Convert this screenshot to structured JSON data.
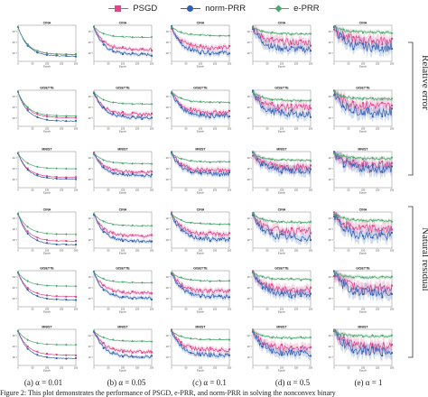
{
  "legend": [
    {
      "label": "PSGD",
      "color": "#e0448a",
      "marker": "square"
    },
    {
      "label": "norm-PRR",
      "color": "#2f5fb3",
      "marker": "circle"
    },
    {
      "label": "e-PRR",
      "color": "#4aa86b",
      "marker": "diamond"
    }
  ],
  "row_group_labels": [
    "Relative error",
    "Natural residual"
  ],
  "column_captions": [
    "(a) α = 0.01",
    "(b) α = 0.05",
    "(c) α = 0.1",
    "(d) α = 0.5",
    "(e) α = 1"
  ],
  "figure_caption": "Figure 2: This plot demonstrates the performance of PSGD, e-PRR, and norm-PRR in solving the nonconvex binary",
  "chart_data": {
    "type": "line",
    "layout_note": "6x5 grid of small line plots; rows = metric x dataset, columns = step size alpha",
    "datasets": [
      "CINA",
      "GISETTE",
      "MNIST",
      "CINA",
      "GISETTE",
      "MNIST"
    ],
    "row_metrics": [
      "Relative error",
      "Relative error",
      "Relative error",
      "Natural residual",
      "Natural residual",
      "Natural residual"
    ],
    "alphas": [
      0.01,
      0.05,
      0.1,
      0.5,
      1
    ],
    "xlabel": "Epoch",
    "x_ticks": [
      0,
      50,
      100,
      150,
      200
    ],
    "xlim": [
      0,
      200
    ],
    "y_scale": "log",
    "y_ticks": [
      "10⁻¹",
      "10⁻²",
      "10⁻³"
    ],
    "series_names": [
      "PSGD",
      "norm-PRR",
      "e-PRR"
    ],
    "subplots_note": "Approximate levels (log10) at epoch 200 per series; curves decay from ~1 at epoch 0",
    "end_levels": {
      "PSGD": [
        [
          -1.6,
          -1.3,
          -1.2,
          -0.9,
          -0.8
        ],
        [
          -1.5,
          -1.3,
          -1.2,
          -0.9,
          -0.8
        ],
        [
          -1.4,
          -1.1,
          -1.0,
          -0.8,
          -0.7
        ],
        [
          -1.6,
          -1.3,
          -1.2,
          -1.0,
          -0.9
        ],
        [
          -1.4,
          -1.2,
          -1.1,
          -1.0,
          -0.9
        ],
        [
          -1.4,
          -1.2,
          -1.1,
          -1.0,
          -0.9
        ]
      ],
      "norm-PRR": [
        [
          -1.7,
          -1.6,
          -1.5,
          -1.3,
          -1.2
        ],
        [
          -1.7,
          -1.5,
          -1.4,
          -1.3,
          -1.2
        ],
        [
          -1.5,
          -1.3,
          -1.2,
          -1.0,
          -0.9
        ],
        [
          -1.8,
          -1.6,
          -1.5,
          -1.4,
          -1.3
        ],
        [
          -1.6,
          -1.5,
          -1.4,
          -1.3,
          -1.2
        ],
        [
          -1.6,
          -1.5,
          -1.4,
          -1.3,
          -1.2
        ]
      ],
      "e-PRR": [
        [
          -1.6,
          -0.6,
          -0.5,
          -0.4,
          -0.3
        ],
        [
          -1.4,
          -0.7,
          -0.6,
          -0.5,
          -0.4
        ],
        [
          -0.9,
          -0.6,
          -0.5,
          -0.4,
          -0.3
        ],
        [
          -1.2,
          -0.7,
          -0.6,
          -0.5,
          -0.4
        ],
        [
          -0.8,
          -0.6,
          -0.5,
          -0.4,
          -0.3
        ],
        [
          -0.8,
          -0.6,
          -0.5,
          -0.4,
          -0.3
        ]
      ]
    },
    "noise_by_column": [
      0.02,
      0.08,
      0.12,
      0.2,
      0.26
    ],
    "grid": false,
    "legend_position": "top-center"
  }
}
